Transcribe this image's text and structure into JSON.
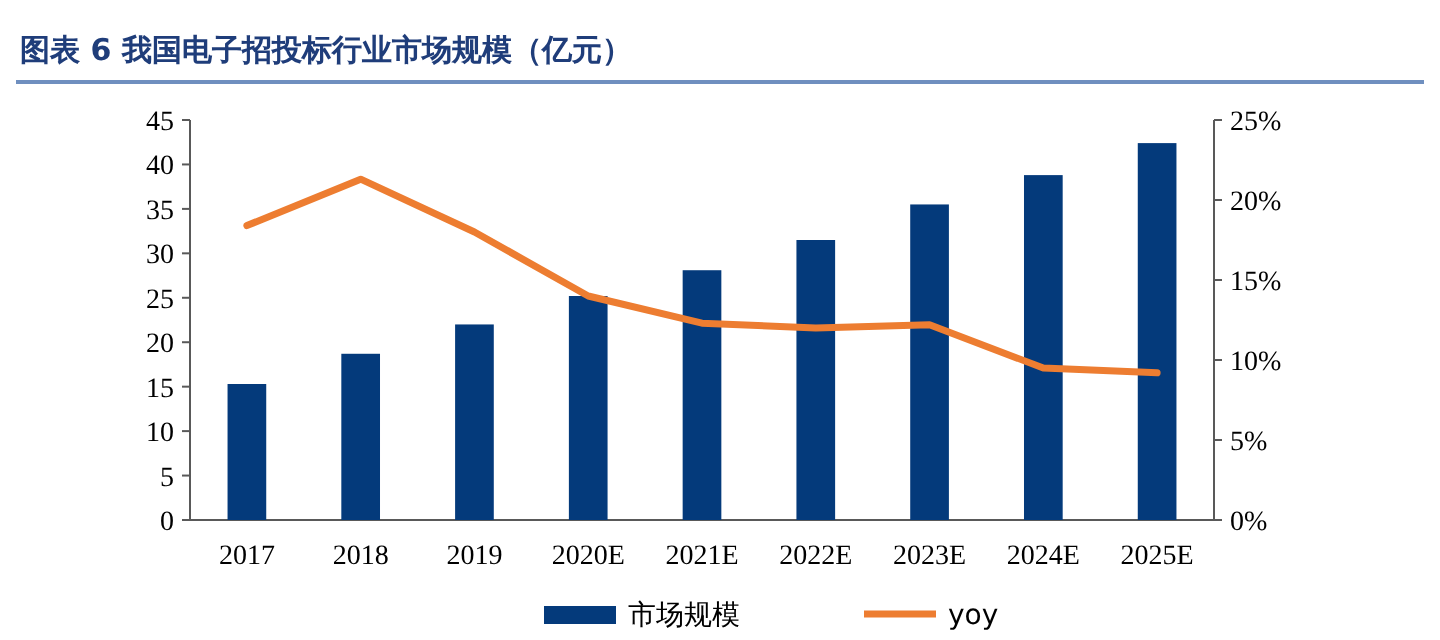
{
  "chart_data": {
    "type": "bar",
    "title": "图表 6  我国电子招投标行业市场规模（亿元）",
    "categories": [
      "2017",
      "2018",
      "2019",
      "2020E",
      "2021E",
      "2022E",
      "2023E",
      "2024E",
      "2025E"
    ],
    "series": [
      {
        "name": "市场规模",
        "color": "#043a7b",
        "values": [
          15.3,
          18.7,
          22.0,
          25.2,
          28.1,
          31.5,
          35.5,
          38.8,
          42.4
        ]
      },
      {
        "name": "yoy",
        "type": "line",
        "axis": "y2",
        "color": "#ed7d31",
        "values": [
          18.4,
          21.3,
          18.0,
          14.0,
          12.3,
          12.0,
          12.2,
          9.5,
          9.2
        ]
      }
    ],
    "ylim": [
      0,
      45
    ],
    "yticks": [
      0,
      5,
      10,
      15,
      20,
      25,
      30,
      35,
      40,
      45
    ],
    "y2lim": [
      0,
      25
    ],
    "y2ticks": [
      {
        "value": 0,
        "label": "0%"
      },
      {
        "value": 5,
        "label": "5%"
      },
      {
        "value": 10,
        "label": "10%"
      },
      {
        "value": 15,
        "label": "15%"
      },
      {
        "value": 20,
        "label": "20%"
      },
      {
        "value": 25,
        "label": "25%"
      }
    ],
    "legend": "bottom",
    "grid": false,
    "marker": "none",
    "line_style": "solid"
  }
}
